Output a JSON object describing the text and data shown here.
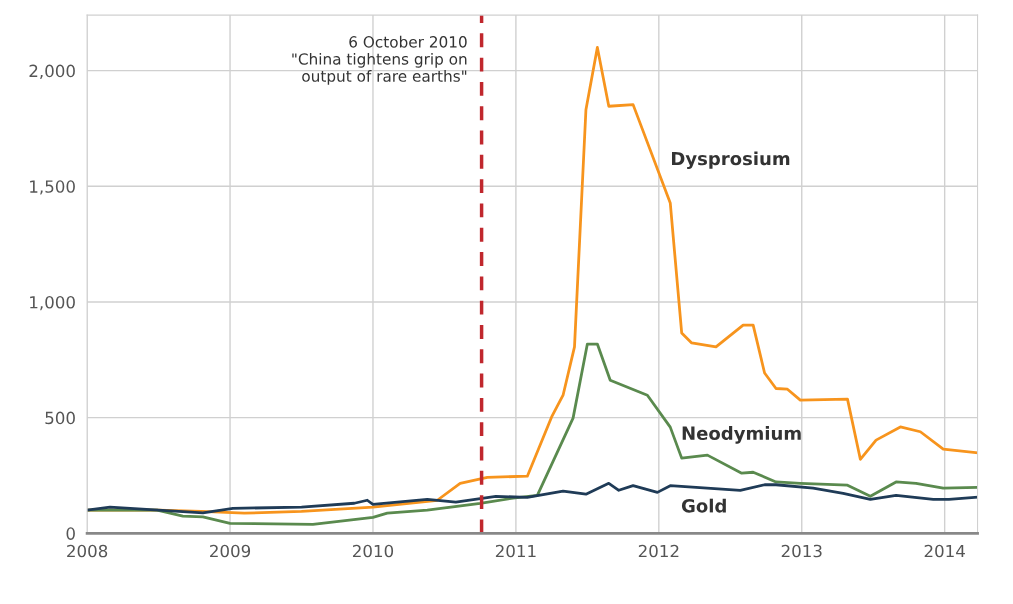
{
  "chart_data": {
    "type": "line",
    "annotations": [
      "6 October 2010\n\"China tightens grip on\noutput of rare earths\""
    ],
    "xlim": [
      2008,
      2014.23
    ],
    "xticks": [
      2008,
      2009,
      2010,
      2011,
      2012,
      2013,
      2014
    ],
    "ylim": [
      0,
      2240
    ],
    "yticks": [
      0,
      500,
      {
        "value": 1000,
        "label": "1,000"
      },
      {
        "value": 1500,
        "label": "1,500"
      },
      {
        "value": 2000,
        "label": "2,000"
      }
    ],
    "grid": true,
    "legend": false,
    "ref_lines": [
      {
        "axis": "x",
        "value": 2010.76,
        "color": "#c0272d",
        "line_style": "dashed"
      }
    ],
    "series": [
      {
        "name": "Dysprosium",
        "color": "#f7941d",
        "x": [
          2008.0,
          2008.5,
          2008.8,
          2009.1,
          2009.5,
          2010.0,
          2010.45,
          2010.61,
          2010.8,
          2011.08,
          2011.25,
          2011.33,
          2011.41,
          2011.49,
          2011.57,
          2011.65,
          2011.82,
          2012.08,
          2012.16,
          2012.23,
          2012.4,
          2012.59,
          2012.66,
          2012.74,
          2012.82,
          2012.9,
          2012.99,
          2013.32,
          2013.41,
          2013.52,
          2013.69,
          2013.83,
          2013.99,
          2014.23
        ],
        "values": [
          100,
          100,
          95,
          87,
          95,
          113,
          143,
          216,
          242,
          247,
          503,
          597,
          806,
          1831,
          2100,
          1846,
          1853,
          1428,
          866,
          823,
          806,
          900,
          900,
          693,
          626,
          623,
          576,
          580,
          320,
          403,
          460,
          439,
          364,
          348
        ]
      },
      {
        "name": "Neodymium",
        "color": "#5a8a4e",
        "x": [
          2008.0,
          2008.49,
          2008.67,
          2008.81,
          2009.0,
          2009.58,
          2010.0,
          2010.1,
          2010.38,
          2010.75,
          2010.98,
          2011.15,
          2011.4,
          2011.5,
          2011.57,
          2011.66,
          2011.92,
          2012.08,
          2012.16,
          2012.34,
          2012.58,
          2012.66,
          2012.82,
          2012.99,
          2013.32,
          2013.48,
          2013.66,
          2013.8,
          2013.99,
          2014.23
        ],
        "values": [
          100,
          100,
          74,
          71,
          43,
          39,
          69,
          87,
          100,
          130,
          152,
          164,
          498,
          818,
          818,
          662,
          597,
          459,
          325,
          338,
          260,
          264,
          222,
          216,
          208,
          160,
          222,
          216,
          195,
          199
        ]
      },
      {
        "name": "Gold",
        "color": "#1f3b57",
        "x": [
          2008.0,
          2008.16,
          2008.5,
          2008.81,
          2009.02,
          2009.5,
          2009.87,
          2009.96,
          2010.0,
          2010.38,
          2010.58,
          2010.86,
          2011.08,
          2011.33,
          2011.49,
          2011.65,
          2011.72,
          2011.82,
          2011.99,
          2012.08,
          2012.57,
          2012.74,
          2012.82,
          2013.08,
          2013.29,
          2013.48,
          2013.66,
          2013.92,
          2014.03,
          2014.23
        ],
        "values": [
          100,
          113,
          100,
          88,
          108,
          113,
          130,
          143,
          125,
          147,
          135,
          160,
          155,
          182,
          169,
          216,
          186,
          206,
          177,
          206,
          186,
          210,
          210,
          195,
          173,
          147,
          164,
          147,
          147,
          156
        ]
      }
    ]
  }
}
